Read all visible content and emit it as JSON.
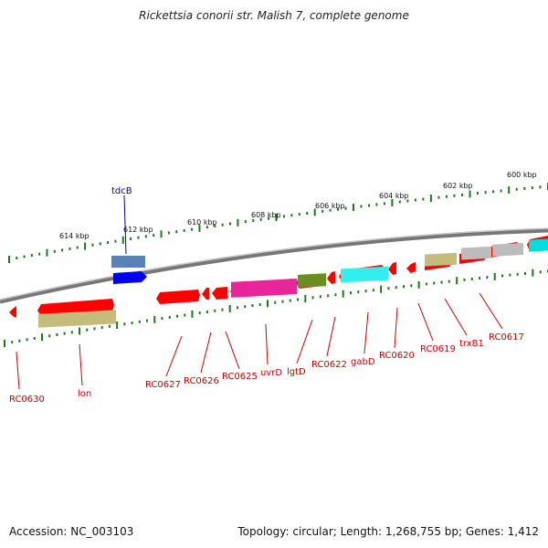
{
  "title": "Rickettsia conorii str. Malish 7, complete genome",
  "footer": {
    "accession": "Accession: NC_003103",
    "summary": "Topology: circular; Length: 1,268,755 bp; Genes: 1,412"
  },
  "scale_labels": [
    "600 kbp",
    "602 kbp",
    "604 kbp",
    "606 kbp",
    "608 kbp",
    "610 kbp",
    "612 kbp",
    "614 kbp"
  ],
  "genes": [
    {
      "label": "tdcB",
      "color": "#0000aa"
    },
    {
      "label": "RC0630",
      "color": "#cc0000"
    },
    {
      "label": "lon",
      "color": "#cc0000"
    },
    {
      "label": "RC0627",
      "color": "#cc0000"
    },
    {
      "label": "RC0626",
      "color": "#cc0000"
    },
    {
      "label": "RC0625",
      "color": "#cc0000"
    },
    {
      "label": "uvrD",
      "color": "#cc0000"
    },
    {
      "label": "lgtD",
      "color": "#cc0000"
    },
    {
      "label": "RC0622",
      "color": "#cc0000"
    },
    {
      "label": "gabD",
      "color": "#cc0000"
    },
    {
      "label": "RC0620",
      "color": "#cc0000"
    },
    {
      "label": "RC0619",
      "color": "#cc0000"
    },
    {
      "label": "trxB1",
      "color": "#cc0000"
    },
    {
      "label": "RC0617",
      "color": "#cc0000"
    }
  ],
  "colors": {
    "gene_red": "#ff0000",
    "backbone": "#888888",
    "tick_green": "#1a7a1a",
    "cog_olive": "#c4bc7a",
    "cog_magenta": "#e8259a",
    "cog_green": "#6b8e23",
    "cog_cyan": "#33eeee",
    "cog_gray": "#bcbcbc",
    "cog_steel": "#5577aa",
    "blue_gene": "#0000ee",
    "cyan_gene": "#00dddd"
  }
}
